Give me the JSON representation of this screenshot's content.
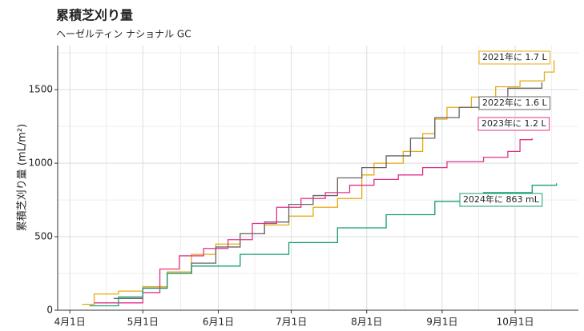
{
  "chart_data": {
    "type": "step",
    "title": "累積芝刈り量",
    "subtitle": "ヘーゼルティン ナショナル GC",
    "ylabel": "累積芝刈り量 (mL/m²)",
    "xlim": [
      -5,
      209
    ],
    "ylim": [
      0,
      1800
    ],
    "xticks": [
      {
        "value": 0,
        "label": "4月1日"
      },
      {
        "value": 30,
        "label": "5月1日"
      },
      {
        "value": 61,
        "label": "6月1日"
      },
      {
        "value": 91,
        "label": "7月1日"
      },
      {
        "value": 122,
        "label": "8月1日"
      },
      {
        "value": 153,
        "label": "9月1日"
      },
      {
        "value": 183,
        "label": "10月1日"
      }
    ],
    "yticks": [
      0,
      500,
      1000,
      1500
    ],
    "grid": true,
    "series": [
      {
        "name": "2021年に 1.7 L",
        "color": "#e8a913",
        "x": [
          5,
          10,
          20,
          30,
          40,
          50,
          60,
          70,
          80,
          90,
          100,
          110,
          120,
          125,
          135,
          137,
          145,
          150,
          155,
          165,
          175,
          185,
          195,
          199
        ],
        "values": [
          40,
          110,
          130,
          160,
          260,
          380,
          450,
          520,
          580,
          640,
          700,
          760,
          920,
          1000,
          1000,
          1080,
          1200,
          1300,
          1380,
          1450,
          1520,
          1560,
          1620,
          1700
        ]
      },
      {
        "name": "2022年に 1.6 L",
        "color": "#666666",
        "x": [
          18,
          30,
          40,
          50,
          60,
          70,
          80,
          90,
          100,
          110,
          120,
          130,
          140,
          150,
          160,
          170,
          180,
          194
        ],
        "values": [
          80,
          150,
          250,
          320,
          430,
          520,
          600,
          720,
          780,
          900,
          970,
          1050,
          1170,
          1310,
          1380,
          1450,
          1510,
          1550
        ]
      },
      {
        "name": "2023年に 1.2 L",
        "color": "#e0338a",
        "x": [
          10,
          30,
          37,
          45,
          55,
          65,
          75,
          85,
          95,
          105,
          115,
          125,
          135,
          145,
          155,
          170,
          180,
          185,
          190
        ],
        "values": [
          50,
          120,
          280,
          370,
          420,
          480,
          590,
          700,
          760,
          800,
          850,
          890,
          920,
          970,
          1010,
          1040,
          1080,
          1160,
          1170
        ]
      },
      {
        "name": "2024年に 863 mL",
        "color": "#1a9e77",
        "x": [
          8,
          20,
          30,
          40,
          50,
          70,
          90,
          110,
          130,
          150,
          170,
          190,
          200
        ],
        "values": [
          30,
          90,
          150,
          250,
          300,
          380,
          460,
          560,
          650,
          740,
          800,
          850,
          863
        ]
      }
    ]
  }
}
